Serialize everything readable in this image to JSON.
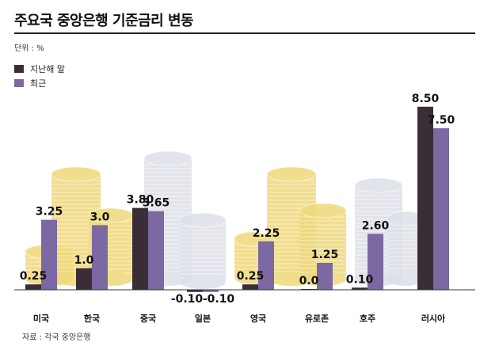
{
  "title": "주요국 중앙은행 기준금리 변동",
  "unit": "단위 : %",
  "source": "자료 : 각국 중앙은행",
  "colors": {
    "prev": "#3a2d35",
    "recent": "#7c68a2",
    "baseline": "#333333",
    "gold_coin": "#efd97a",
    "silver_coin": "#dde0e8"
  },
  "chart_data": {
    "type": "bar",
    "title": "주요국 중앙은행 기준금리 변동",
    "categories": [
      "미국",
      "한국",
      "중국",
      "일본",
      "영국",
      "유로존",
      "호주",
      "러시아"
    ],
    "series": [
      {
        "name": "지난해 말",
        "values": [
          0.25,
          1.0,
          3.8,
          -0.1,
          0.25,
          0.0,
          0.1,
          8.5
        ],
        "labels": [
          "0.25",
          "1.0",
          "3.80",
          "-0.10",
          "0.25",
          "0.0",
          "0.10",
          "8.50"
        ]
      },
      {
        "name": "최근",
        "values": [
          3.25,
          3.0,
          3.65,
          -0.1,
          2.25,
          1.25,
          2.6,
          7.5
        ],
        "labels": [
          "3.25",
          "3.0",
          "3.65",
          "-0.10",
          "2.25",
          "1.25",
          "2.60",
          "7.50"
        ]
      }
    ],
    "ylim": [
      -0.3,
      9.0
    ],
    "legend": "top-left",
    "grid": false
  }
}
